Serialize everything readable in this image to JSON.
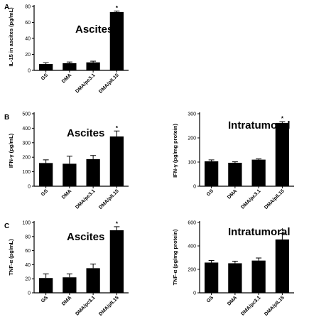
{
  "chart_data": [
    {
      "panel": "A",
      "type": "bar",
      "title": "Ascites",
      "ylabel": "IL-15 in ascites (pg/mL)",
      "ylim": [
        0,
        80
      ],
      "yticks": [
        "0",
        "20",
        "40",
        "60",
        "80"
      ],
      "categories": [
        "GS",
        "DMA",
        "DMA/pc3.1",
        "DMA/pIL15"
      ],
      "values": [
        8,
        9,
        10,
        73
      ],
      "errors": [
        1.5,
        1.5,
        1.5,
        1.2
      ],
      "marker": "*",
      "marked_index": 3
    },
    {
      "panel": "B",
      "type": "bar",
      "title": "Ascites",
      "ylabel": "IFN-γ (pg/mL)",
      "ylim": [
        0,
        500
      ],
      "yticks": [
        "0",
        "100",
        "200",
        "300",
        "400",
        "500"
      ],
      "categories": [
        "GS",
        "DMA",
        "DMA/pc3.1",
        "DMA/pIL15"
      ],
      "values": [
        160,
        155,
        187,
        343
      ],
      "errors": [
        22,
        52,
        25,
        38
      ],
      "marker": "*",
      "marked_index": 3
    },
    {
      "type": "bar",
      "title": "Intratumoral",
      "ylabel": "IFN-γ (pg/mg protein)",
      "ylim": [
        0,
        300
      ],
      "yticks": [
        "0",
        "100",
        "200",
        "300"
      ],
      "categories": [
        "GS",
        "DMA",
        "DMA/pc3.1",
        "DMA/pIL15"
      ],
      "values": [
        103,
        97,
        110,
        262
      ],
      "errors": [
        6,
        4,
        3,
        5
      ],
      "marker": "*",
      "marked_index": 3
    },
    {
      "panel": "C",
      "type": "bar",
      "title": "Ascites",
      "ylabel": "TNF-α (pg/mL)",
      "ylim": [
        0,
        100
      ],
      "yticks": [
        "0",
        "20",
        "40",
        "60",
        "80",
        "100"
      ],
      "categories": [
        "GS",
        "DMA",
        "DMA/pc3.1",
        "DMA/pIL15"
      ],
      "values": [
        21,
        22,
        35,
        89
      ],
      "errors": [
        6,
        5,
        6,
        5
      ],
      "marker": "*",
      "marked_index": 3
    },
    {
      "type": "bar",
      "title": "Intratumoral",
      "ylabel": "TNF-α (pg/mg protein)",
      "ylim": [
        0,
        600
      ],
      "yticks": [
        "0",
        "200",
        "400",
        "600"
      ],
      "categories": [
        "GS",
        "DMA",
        "DMA/pc3.1",
        "DMA/pIL15"
      ],
      "values": [
        258,
        252,
        275,
        455
      ],
      "errors": [
        18,
        18,
        22,
        50
      ],
      "marker": "*",
      "marked_index": 3
    }
  ]
}
